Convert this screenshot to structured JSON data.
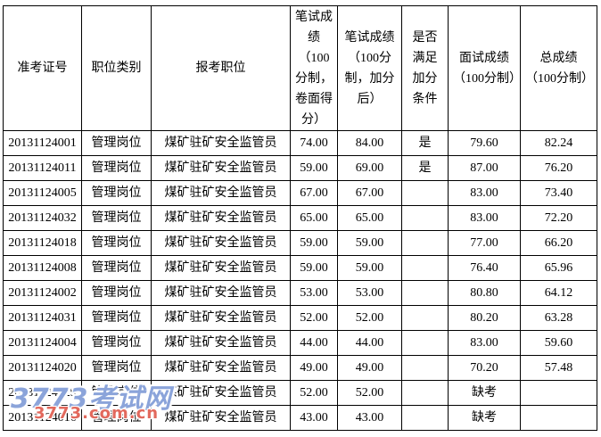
{
  "watermark": {
    "main_text": "3773考试网",
    "sub_text": "3773.com.cn",
    "main_color": "#8ba4da",
    "sub_color": "#e2695d"
  },
  "table": {
    "columns": [
      "准考证号",
      "职位类别",
      "报考职位",
      "笔试成绩（100分制，卷面得分）",
      "笔试成绩（100分制，加分后）",
      "是否满足加分条件",
      "面试成绩（100分制）",
      "总成绩（100分制）"
    ],
    "rows": [
      [
        "20131124001",
        "管理岗位",
        "煤矿驻矿安全监管员",
        "74.00",
        "84.00",
        "是",
        "79.60",
        "82.24"
      ],
      [
        "20131124011",
        "管理岗位",
        "煤矿驻矿安全监管员",
        "59.00",
        "69.00",
        "是",
        "87.00",
        "76.20"
      ],
      [
        "20131124005",
        "管理岗位",
        "煤矿驻矿安全监管员",
        "67.00",
        "67.00",
        "",
        "83.00",
        "73.40"
      ],
      [
        "20131124032",
        "管理岗位",
        "煤矿驻矿安全监管员",
        "65.00",
        "65.00",
        "",
        "83.00",
        "72.20"
      ],
      [
        "20131124018",
        "管理岗位",
        "煤矿驻矿安全监管员",
        "59.00",
        "59.00",
        "",
        "77.00",
        "66.20"
      ],
      [
        "20131124008",
        "管理岗位",
        "煤矿驻矿安全监管员",
        "59.00",
        "59.00",
        "",
        "76.40",
        "65.96"
      ],
      [
        "20131124002",
        "管理岗位",
        "煤矿驻矿安全监管员",
        "53.00",
        "53.00",
        "",
        "80.80",
        "64.12"
      ],
      [
        "20131124031",
        "管理岗位",
        "煤矿驻矿安全监管员",
        "52.00",
        "52.00",
        "",
        "80.20",
        "63.28"
      ],
      [
        "20131124004",
        "管理岗位",
        "煤矿驻矿安全监管员",
        "44.00",
        "44.00",
        "",
        "83.00",
        "59.60"
      ],
      [
        "20131124020",
        "管理岗位",
        "煤矿驻矿安全监管员",
        "49.00",
        "49.00",
        "",
        "70.20",
        "57.48"
      ],
      [
        "20131124029",
        "管理岗位",
        "煤矿驻矿安全监管员",
        "52.00",
        "52.00",
        "",
        "缺考",
        ""
      ],
      [
        "20131124016",
        "管理岗位",
        "煤矿驻矿安全监管员",
        "43.00",
        "43.00",
        "",
        "缺考",
        ""
      ]
    ]
  }
}
